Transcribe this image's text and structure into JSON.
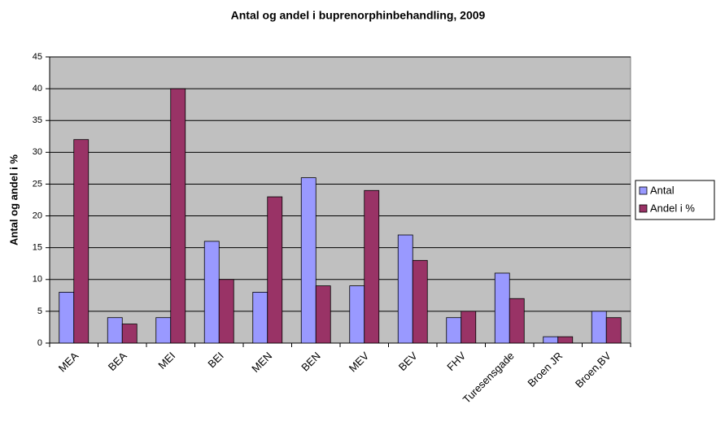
{
  "chart_data": {
    "type": "bar",
    "title": "Antal og andel i buprenorphinbehandling, 2009",
    "y_label": "Antal og andel i %",
    "categories": [
      "MEA",
      "BEA",
      "MEI",
      "BEI",
      "MEN",
      "BEN",
      "MEV",
      "BEV",
      "FHV",
      "Turesensgade",
      "Broen JR",
      "Broen,BV"
    ],
    "series": [
      {
        "name": "Antal",
        "color": "#9999ff",
        "values": [
          8,
          4,
          4,
          16,
          8,
          26,
          9,
          17,
          4,
          11,
          1,
          5
        ]
      },
      {
        "name": "Andel i %",
        "color": "#993366",
        "values": [
          32,
          3,
          40,
          10,
          23,
          9,
          24,
          13,
          5,
          7,
          1,
          4
        ]
      }
    ],
    "ylim": [
      0,
      45
    ],
    "yticks": [
      0,
      5,
      10,
      15,
      20,
      25,
      30,
      35,
      40,
      45
    ],
    "grid": true,
    "plot_background": "#c0c0c0",
    "legend": "right"
  }
}
